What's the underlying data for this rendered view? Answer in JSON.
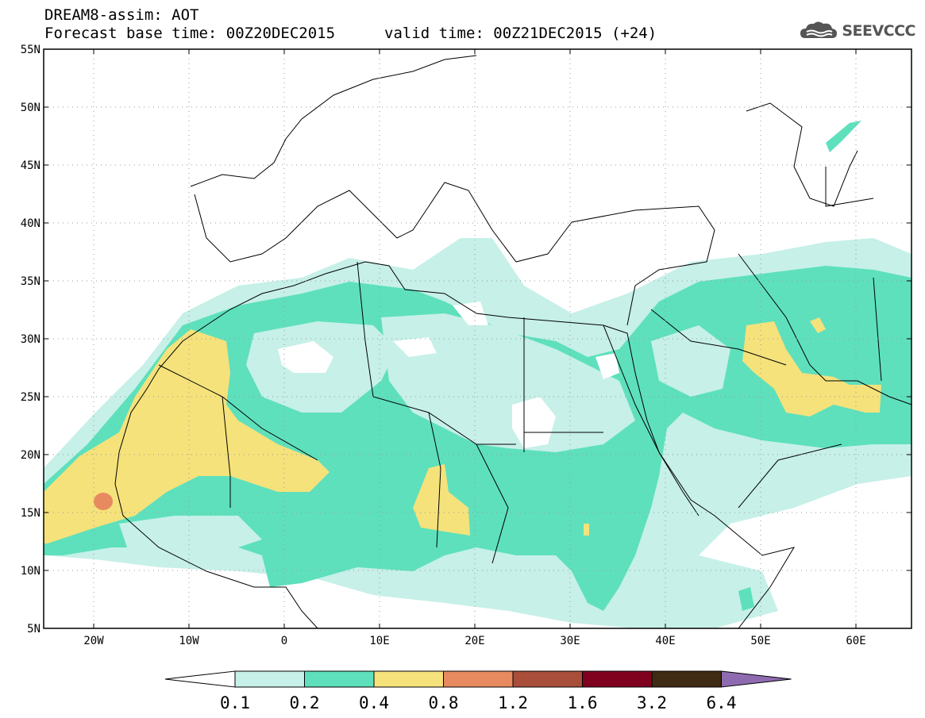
{
  "header": {
    "line1": "DREAM8-assim: AOT",
    "base_time": "Forecast base time: 00Z20DEC2015",
    "valid_time": "valid time: 00Z21DEC2015 (+24)"
  },
  "logo": {
    "text": "SEEVCCC",
    "icon": "cloud-icon"
  },
  "lat_ticks": [
    "55N",
    "50N",
    "45N",
    "40N",
    "35N",
    "30N",
    "25N",
    "20N",
    "15N",
    "10N",
    "5N"
  ],
  "lon_ticks": [
    "20W",
    "10W",
    "0",
    "10E",
    "20E",
    "30E",
    "40E",
    "50E",
    "60E"
  ],
  "colorbar": {
    "labels": [
      "0.1",
      "0.2",
      "0.4",
      "0.8",
      "1.2",
      "1.6",
      "3.2",
      "6.4"
    ],
    "colors": [
      "#c6f0e8",
      "#5ee0bd",
      "#f5e27b",
      "#e88a60",
      "#a84e3a",
      "#800020",
      "#3f2a14",
      "#8e6bb0"
    ],
    "under_color": "#ffffff"
  },
  "colors": {
    "c01": "#c6f0e8",
    "c02": "#5ee0bd",
    "c04": "#f5e27b",
    "c08": "#e88a60"
  }
}
